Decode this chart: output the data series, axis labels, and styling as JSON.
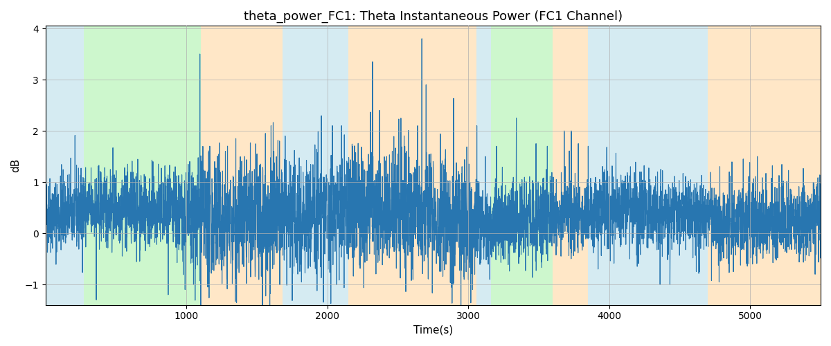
{
  "title": "theta_power_FC1: Theta Instantaneous Power (FC1 Channel)",
  "xlabel": "Time(s)",
  "ylabel": "dB",
  "xlim": [
    0,
    5500
  ],
  "ylim": [
    -1.4,
    4.05
  ],
  "yticks": [
    -1,
    0,
    1,
    2,
    3,
    4
  ],
  "xticks": [
    1000,
    2000,
    3000,
    4000,
    5000
  ],
  "line_color": "#2876b0",
  "line_width": 0.8,
  "bg_color": "#ffffff",
  "grid_color": "#b0b0b0",
  "title_fontsize": 13,
  "label_fontsize": 11,
  "figsize": [
    12,
    5
  ],
  "dpi": 100,
  "seed": 42,
  "n_points": 5500,
  "background_bands": [
    {
      "xmin": 0,
      "xmax": 270,
      "color": "#add8e6",
      "alpha": 0.5
    },
    {
      "xmin": 270,
      "xmax": 1100,
      "color": "#90ee90",
      "alpha": 0.45
    },
    {
      "xmin": 1100,
      "xmax": 1680,
      "color": "#ffd59a",
      "alpha": 0.55
    },
    {
      "xmin": 1680,
      "xmax": 2150,
      "color": "#add8e6",
      "alpha": 0.5
    },
    {
      "xmin": 2150,
      "xmax": 3060,
      "color": "#ffd59a",
      "alpha": 0.55
    },
    {
      "xmin": 3060,
      "xmax": 3160,
      "color": "#add8e6",
      "alpha": 0.5
    },
    {
      "xmin": 3160,
      "xmax": 3600,
      "color": "#90ee90",
      "alpha": 0.45
    },
    {
      "xmin": 3600,
      "xmax": 3850,
      "color": "#ffd59a",
      "alpha": 0.55
    },
    {
      "xmin": 3850,
      "xmax": 4700,
      "color": "#add8e6",
      "alpha": 0.5
    },
    {
      "xmin": 4700,
      "xmax": 5500,
      "color": "#ffd59a",
      "alpha": 0.55
    }
  ]
}
